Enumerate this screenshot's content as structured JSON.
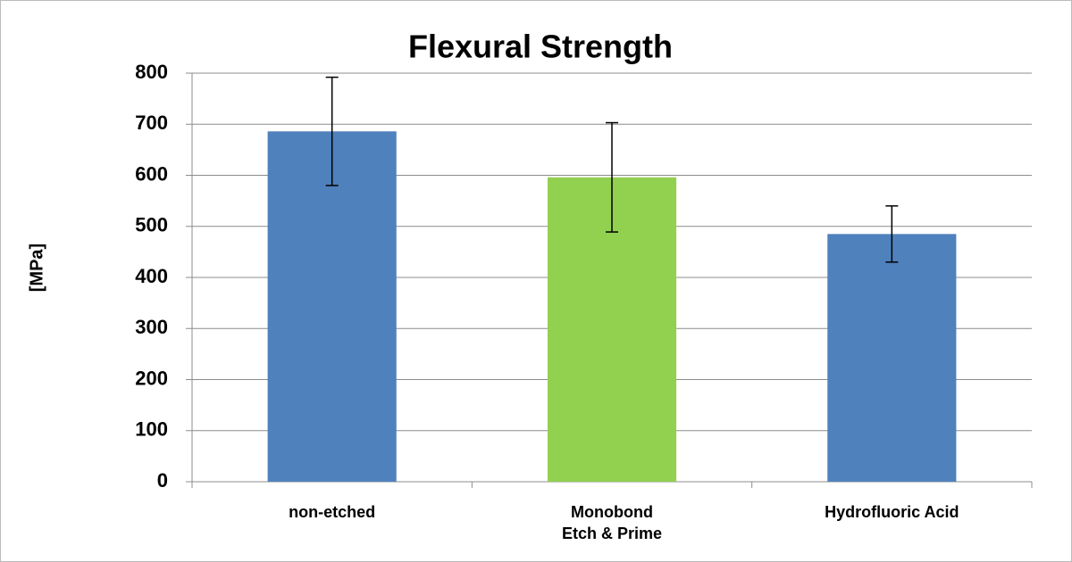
{
  "chart_data": {
    "type": "bar",
    "title": "Flexural Strength",
    "y_label": "[MPa]",
    "categories": [
      "non-etched",
      "Monobond\nEtch & Prime",
      "Hydrofluoric Acid"
    ],
    "values": [
      686,
      596,
      485
    ],
    "errors": [
      106,
      107,
      55
    ],
    "colors": [
      "#4f81bd",
      "#92d050",
      "#4f81bd"
    ],
    "ylim": [
      0,
      800
    ],
    "yticks": [
      0,
      100,
      200,
      300,
      400,
      500,
      600,
      700,
      800
    ],
    "grid": true
  }
}
